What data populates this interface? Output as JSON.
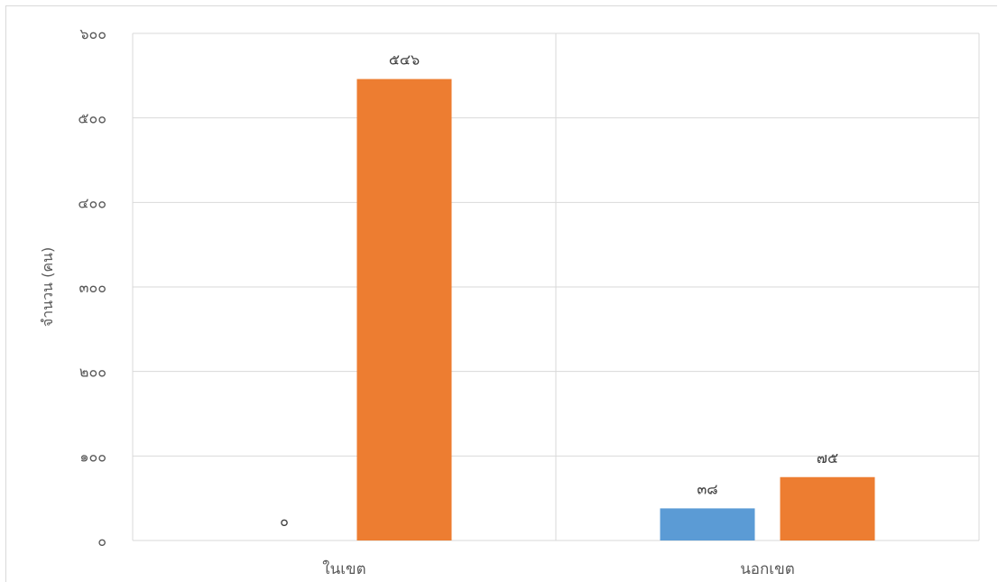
{
  "chart_data": {
    "type": "bar",
    "categories": [
      "ในเขต",
      "นอกเขต"
    ],
    "series": [
      {
        "values": [
          0,
          38
        ],
        "color": "#5B9BD5",
        "value_labels": [
          "๐",
          "๓๘"
        ]
      },
      {
        "values": [
          546,
          75
        ],
        "color": "#ED7D31",
        "value_labels": [
          "๕๔๖",
          "๗๕"
        ]
      }
    ],
    "ylabel": "จำนวน (คน)",
    "xlabel": "",
    "ylim": [
      0,
      600
    ],
    "yticks": [
      0,
      100,
      200,
      300,
      400,
      500,
      600
    ],
    "ytick_labels": [
      "๐",
      "๑๐๐",
      "๒๐๐",
      "๓๐๐",
      "๔๐๐",
      "๕๐๐",
      "๖๐๐"
    ],
    "grid": true
  }
}
